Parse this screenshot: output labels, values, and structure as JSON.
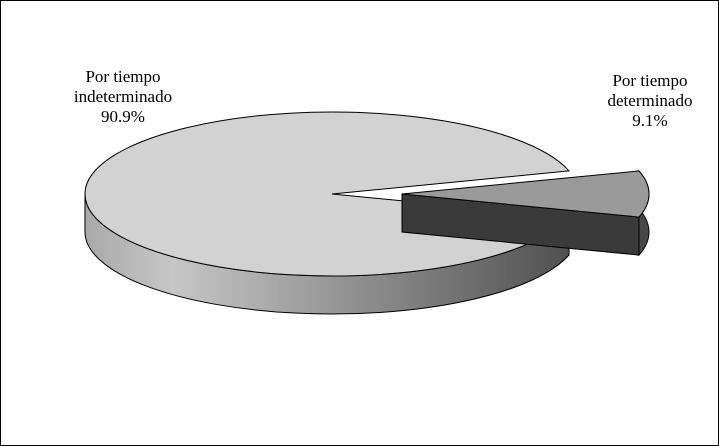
{
  "chart_data": {
    "type": "pie",
    "style": "3d-exploded",
    "slices": [
      {
        "label_line1": "Por tiempo",
        "label_line2": "indeterminado",
        "value": 90.9,
        "value_label": "90.9%",
        "top_color": "#d2d2d2",
        "exploded": false
      },
      {
        "label_line1": "Por tiempo",
        "label_line2": "determinado",
        "value": 9.1,
        "value_label": "9.1%",
        "top_color": "#9a9a9a",
        "exploded": true
      }
    ]
  }
}
